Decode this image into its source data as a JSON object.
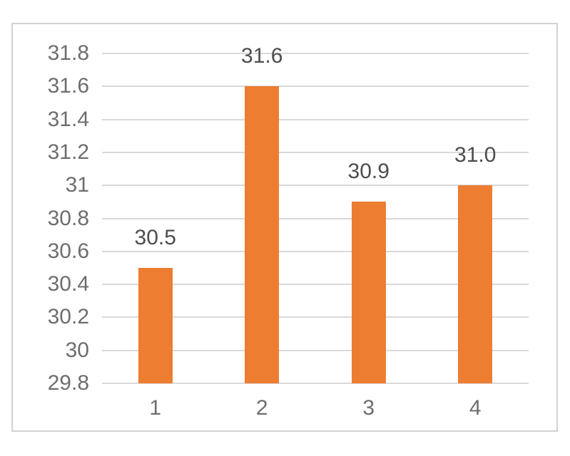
{
  "chart_data": {
    "type": "bar",
    "title": "",
    "xlabel": "",
    "ylabel": "",
    "categories": [
      "1",
      "2",
      "3",
      "4"
    ],
    "values": [
      30.5,
      31.6,
      30.9,
      31.0
    ],
    "data_labels": [
      "30.5",
      "31.6",
      "30.9",
      "31.0"
    ],
    "ylim": [
      29.8,
      31.8
    ],
    "ytick_step": 0.2,
    "ytick_values": [
      31.8,
      31.6,
      31.4,
      31.2,
      31.0,
      30.8,
      30.6,
      30.4,
      30.2,
      30.0,
      29.8
    ],
    "ytick_labels": [
      "31.8",
      "31.6",
      "31.4",
      "31.2",
      "31",
      "30.8",
      "30.6",
      "30.4",
      "30.2",
      "30",
      "29.8"
    ],
    "grid": true,
    "legend": false,
    "legend_position": "none",
    "colors": {
      "bar": "#ED7D31",
      "gridline": "#D9D9D9",
      "axis_line": "#D9D9D9",
      "axis_tick_text": "#6E6E6E",
      "data_label_text": "#4D4D4D",
      "frame_border": "#D2D2D2",
      "background": "#FFFFFF"
    }
  }
}
